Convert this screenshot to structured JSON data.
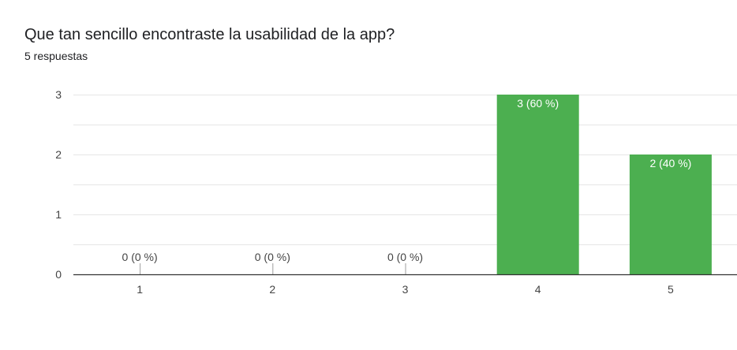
{
  "header": {
    "title": "Que tan sencillo encontraste la usabilidad de la app?",
    "subtitle": "5 respuestas"
  },
  "colors": {
    "bar": "#4caf50",
    "grid": "#e6e6e6",
    "axis": "#333333",
    "label_outside": "#444444",
    "label_inside": "#ffffff"
  },
  "chart_data": {
    "type": "bar",
    "title": "Que tan sencillo encontraste la usabilidad de la app?",
    "subtitle": "5 respuestas",
    "xlabel": "",
    "ylabel": "",
    "categories": [
      "1",
      "2",
      "3",
      "4",
      "5"
    ],
    "values": [
      0,
      0,
      0,
      3,
      2
    ],
    "data_labels": [
      "0 (0 %)",
      "0 (0 %)",
      "0 (0 %)",
      "3 (60 %)",
      "2 (40 %)"
    ],
    "ylim": [
      0,
      3
    ],
    "yticks": [
      "0",
      "1",
      "2",
      "3"
    ],
    "grid": true,
    "legend": "none"
  }
}
